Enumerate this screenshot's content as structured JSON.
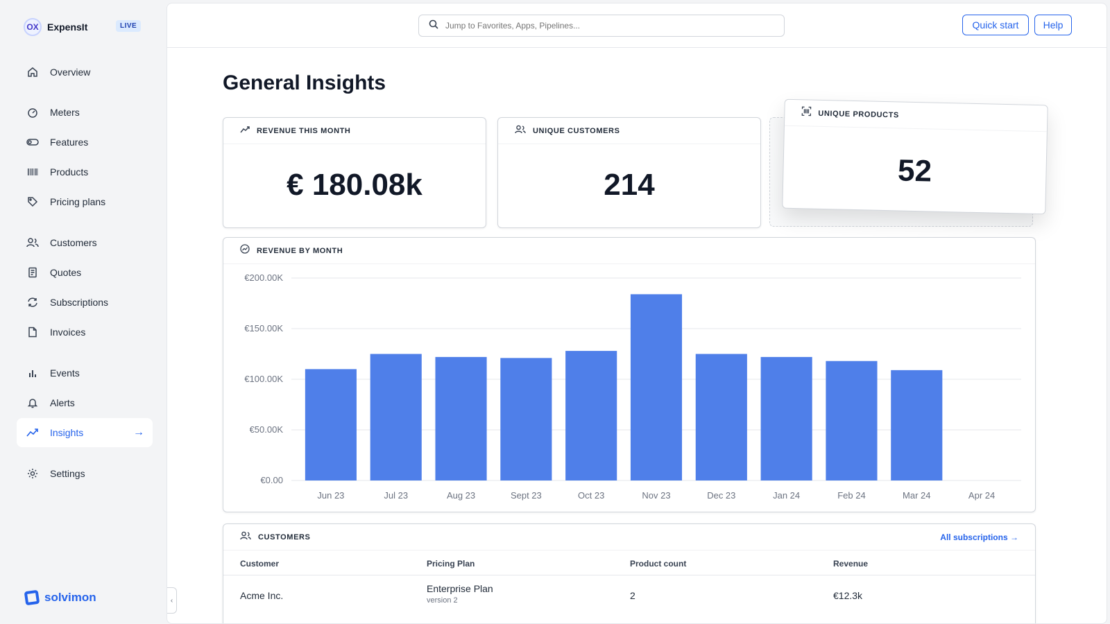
{
  "app": {
    "logo_text": "OX",
    "name": "ExpensIt",
    "badge": "LIVE"
  },
  "sidebar": {
    "items": [
      {
        "label": "Overview",
        "icon": "home-icon"
      },
      {
        "label": "Meters",
        "icon": "gauge-icon"
      },
      {
        "label": "Features",
        "icon": "toggle-icon"
      },
      {
        "label": "Products",
        "icon": "barcode-icon"
      },
      {
        "label": "Pricing plans",
        "icon": "tag-icon"
      },
      {
        "label": "Customers",
        "icon": "users-icon"
      },
      {
        "label": "Quotes",
        "icon": "receipt-icon"
      },
      {
        "label": "Subscriptions",
        "icon": "refresh-icon"
      },
      {
        "label": "Invoices",
        "icon": "file-icon"
      },
      {
        "label": "Events",
        "icon": "bar-chart-icon"
      },
      {
        "label": "Alerts",
        "icon": "bell-icon"
      },
      {
        "label": "Insights",
        "icon": "trend-icon",
        "active": true
      },
      {
        "label": "Settings",
        "icon": "gear-icon"
      }
    ],
    "footer_brand": "solvimon"
  },
  "topbar": {
    "search_placeholder": "Jump to Favorites, Apps, Pipelines...",
    "quick_start": "Quick start",
    "help": "Help"
  },
  "page": {
    "title": "General Insights"
  },
  "cards": {
    "revenue": {
      "label": "REVENUE THIS MONTH",
      "value": "€ 180.08k"
    },
    "customers": {
      "label": "UNIQUE CUSTOMERS",
      "value": "214"
    },
    "products": {
      "label": "UNIQUE PRODUCTS",
      "value": "52"
    }
  },
  "chart_title": "REVENUE BY MONTH",
  "chart_data": {
    "type": "bar",
    "categories": [
      "Jun 23",
      "Jul 23",
      "Aug 23",
      "Sept 23",
      "Oct 23",
      "Nov 23",
      "Dec 23",
      "Jan 24",
      "Feb 24",
      "Mar 24",
      "Apr 24"
    ],
    "values": [
      110000,
      125000,
      122000,
      121000,
      128000,
      184000,
      125000,
      122000,
      118000,
      109000,
      null
    ],
    "ylim": [
      0,
      200000
    ],
    "yticks": [
      "€0.00",
      "€50.00K",
      "€100.00K",
      "€150.00K",
      "€200.00K"
    ],
    "color": "#4f7fe9",
    "grid": true
  },
  "customers_table": {
    "title": "CUSTOMERS",
    "link": "All subscriptions",
    "headers": [
      "Customer",
      "Pricing Plan",
      "Product count",
      "Revenue"
    ],
    "rows": [
      {
        "customer": "Acme Inc.",
        "plan": "Enterprise Plan",
        "plan_version": "version 2",
        "product_count": "2",
        "revenue": "€12.3k"
      }
    ]
  }
}
